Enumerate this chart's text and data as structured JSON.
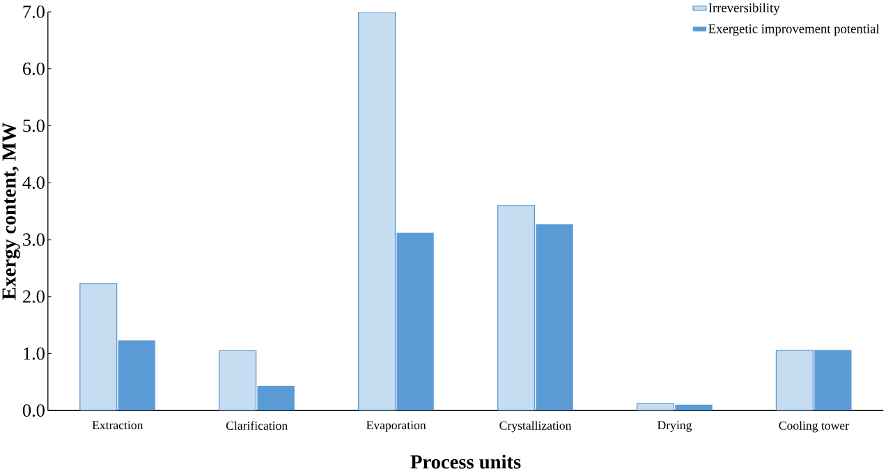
{
  "chart_data": {
    "type": "bar",
    "xlabel": "Process units",
    "ylabel": "Exergy content, MW",
    "categories": [
      "Extraction",
      "Clarification",
      "Evaporation",
      "Crystallization",
      "Drying",
      "Cooling tower"
    ],
    "series": [
      {
        "name": "Irreversibility",
        "color": "#c6dcf0",
        "values": [
          2.23,
          1.05,
          7.0,
          3.6,
          0.12,
          1.06
        ]
      },
      {
        "name": "Exergetic improvement potential",
        "color": "#5b9bd5",
        "values": [
          1.23,
          0.43,
          3.12,
          3.27,
          0.1,
          1.06
        ]
      }
    ],
    "ylim": [
      0,
      7
    ],
    "yticks": [
      {
        "value": 0,
        "label": "0.0"
      },
      {
        "value": 1,
        "label": "1.0"
      },
      {
        "value": 2,
        "label": "2.0"
      },
      {
        "value": 3,
        "label": "3.0"
      },
      {
        "value": 4,
        "label": "4.0"
      },
      {
        "value": 5,
        "label": "5.0"
      },
      {
        "value": 6,
        "label": "6.0"
      },
      {
        "value": 7,
        "label": "7.0"
      }
    ],
    "grid": false,
    "legend": "top right"
  }
}
